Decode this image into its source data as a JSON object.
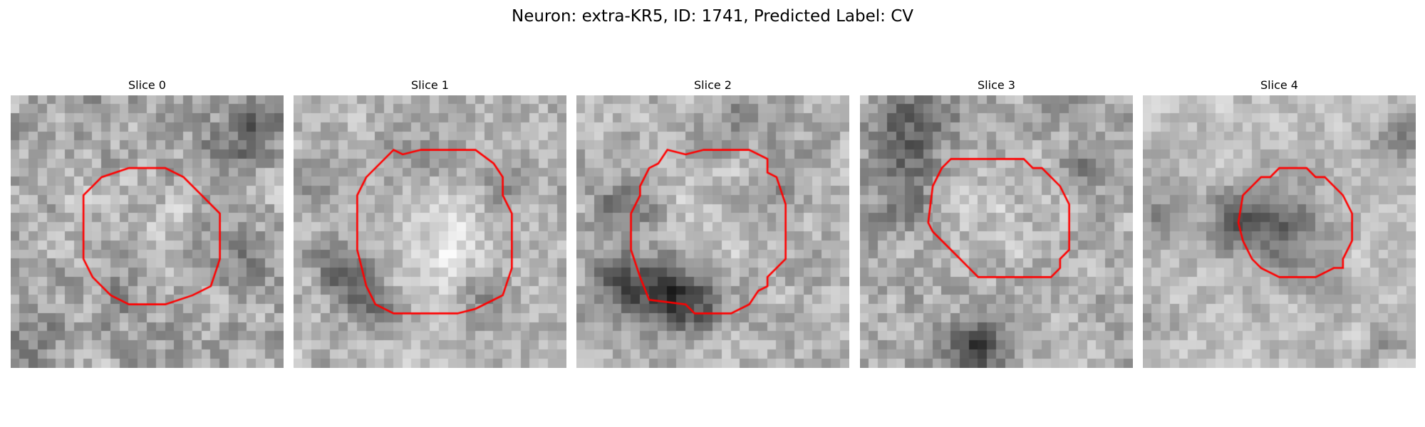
{
  "figure": {
    "title": "Neuron: extra-KR5, ID: 1741, Predicted Label: CV"
  },
  "grid_size": 30,
  "outline_color": "#ff0000",
  "panels": [
    {
      "title": "Slice 0",
      "seed": 11,
      "base": 170,
      "contrast": 42,
      "blobs": [
        {
          "cx": 27,
          "cy": 3,
          "r": 3,
          "d": -70
        },
        {
          "cx": 24,
          "cy": 7,
          "r": 2.5,
          "d": -45
        },
        {
          "cx": 24,
          "cy": 18,
          "r": 3,
          "d": -40
        },
        {
          "cx": 12,
          "cy": 22.5,
          "r": 2.5,
          "d": -45
        },
        {
          "cx": 8,
          "cy": 1,
          "r": 2,
          "d": -35
        },
        {
          "cx": 3,
          "cy": 27,
          "r": 3,
          "d": -35
        },
        {
          "cx": 15,
          "cy": 15,
          "r": 6,
          "d": 18
        }
      ],
      "outline": [
        [
          8,
          11
        ],
        [
          10,
          9
        ],
        [
          13,
          8
        ],
        [
          17,
          8
        ],
        [
          19,
          9
        ],
        [
          21,
          11
        ],
        [
          23,
          13
        ],
        [
          23,
          18
        ],
        [
          22,
          21
        ],
        [
          20,
          22
        ],
        [
          17,
          23
        ],
        [
          13,
          23
        ],
        [
          11,
          22
        ],
        [
          9,
          20
        ],
        [
          8,
          18
        ]
      ]
    },
    {
      "title": "Slice 1",
      "seed": 23,
      "base": 178,
      "contrast": 34,
      "blobs": [
        {
          "cx": 5,
          "cy": 18.5,
          "r": 2.5,
          "d": -60
        },
        {
          "cx": 7,
          "cy": 21.5,
          "r": 2.5,
          "d": -65
        },
        {
          "cx": 10,
          "cy": 23.5,
          "r": 2,
          "d": -50
        },
        {
          "cx": 21,
          "cy": 22,
          "r": 2.5,
          "d": -50
        },
        {
          "cx": 23,
          "cy": 10,
          "r": 2.5,
          "d": -40
        },
        {
          "cx": 14,
          "cy": 7,
          "r": 4,
          "d": -30
        },
        {
          "cx": 16,
          "cy": 15.5,
          "r": 6,
          "d": 40
        },
        {
          "cx": 3,
          "cy": 10,
          "r": 2.5,
          "d": -30
        }
      ],
      "outline": [
        [
          7,
          11
        ],
        [
          8,
          9
        ],
        [
          10,
          7
        ],
        [
          11,
          6
        ],
        [
          12,
          6.5
        ],
        [
          14,
          6
        ],
        [
          20,
          6
        ],
        [
          22,
          7.5
        ],
        [
          23,
          9
        ],
        [
          23,
          11
        ],
        [
          24,
          13
        ],
        [
          24,
          19
        ],
        [
          23,
          22
        ],
        [
          22,
          22.5
        ],
        [
          20,
          23.5
        ],
        [
          18,
          24
        ],
        [
          11,
          24
        ],
        [
          9,
          23
        ],
        [
          8,
          21
        ],
        [
          7,
          17
        ]
      ]
    },
    {
      "title": "Slice 2",
      "seed": 37,
      "base": 175,
      "contrast": 36,
      "blobs": [
        {
          "cx": 9,
          "cy": 21.5,
          "r": 4,
          "d": -95
        },
        {
          "cx": 13,
          "cy": 22.5,
          "r": 3,
          "d": -70
        },
        {
          "cx": 4,
          "cy": 20,
          "r": 2.5,
          "d": -60
        },
        {
          "cx": 5,
          "cy": 12,
          "r": 3,
          "d": -55
        },
        {
          "cx": 22,
          "cy": 10,
          "r": 2.5,
          "d": -40
        },
        {
          "cx": 19,
          "cy": 2.5,
          "r": 2.5,
          "d": -45
        },
        {
          "cx": 15,
          "cy": 14,
          "r": 5.5,
          "d": 28
        }
      ],
      "outline": [
        [
          6,
          13
        ],
        [
          7,
          11
        ],
        [
          7,
          10
        ],
        [
          8,
          8
        ],
        [
          9,
          7.5
        ],
        [
          10,
          6
        ],
        [
          12,
          6.5
        ],
        [
          14,
          6
        ],
        [
          19,
          6
        ],
        [
          21,
          7
        ],
        [
          21,
          8.5
        ],
        [
          22,
          9
        ],
        [
          23,
          12
        ],
        [
          23,
          18
        ],
        [
          21,
          20
        ],
        [
          21,
          21
        ],
        [
          20,
          21.5
        ],
        [
          19,
          23
        ],
        [
          17,
          24
        ],
        [
          13,
          24
        ],
        [
          12,
          23
        ],
        [
          8,
          22.5
        ],
        [
          7,
          20
        ],
        [
          6,
          17
        ]
      ]
    },
    {
      "title": "Slice 3",
      "seed": 53,
      "base": 172,
      "contrast": 38,
      "blobs": [
        {
          "cx": 5,
          "cy": 4,
          "r": 3.5,
          "d": -60
        },
        {
          "cx": 9,
          "cy": 3,
          "r": 2.5,
          "d": -45
        },
        {
          "cx": 5,
          "cy": 9,
          "r": 3,
          "d": -50
        },
        {
          "cx": 4,
          "cy": 13,
          "r": 2.5,
          "d": -40
        },
        {
          "cx": 13,
          "cy": 27.5,
          "r": 3,
          "d": -95
        },
        {
          "cx": 25,
          "cy": 8,
          "r": 2.5,
          "d": -35
        },
        {
          "cx": 15,
          "cy": 13.5,
          "r": 5,
          "d": 22
        }
      ],
      "outline": [
        [
          8,
          10
        ],
        [
          9,
          8
        ],
        [
          10,
          7
        ],
        [
          18,
          7
        ],
        [
          19,
          8
        ],
        [
          20,
          8
        ],
        [
          22,
          10
        ],
        [
          23,
          12
        ],
        [
          23,
          17
        ],
        [
          22,
          18
        ],
        [
          22,
          19
        ],
        [
          21,
          20
        ],
        [
          17,
          20
        ],
        [
          15,
          20
        ],
        [
          13,
          20
        ],
        [
          12,
          19
        ],
        [
          10,
          17
        ],
        [
          9,
          16
        ],
        [
          8,
          15
        ],
        [
          7.5,
          14
        ]
      ]
    },
    {
      "title": "Slice 4",
      "seed": 71,
      "base": 190,
      "contrast": 28,
      "blobs": [
        {
          "cx": 15,
          "cy": 14.5,
          "r": 4.5,
          "d": -85
        },
        {
          "cx": 9.5,
          "cy": 14,
          "r": 2.5,
          "d": -70
        },
        {
          "cx": 2,
          "cy": 13,
          "r": 2.5,
          "d": -50
        },
        {
          "cx": 28,
          "cy": 4.5,
          "r": 2.5,
          "d": -55
        },
        {
          "cx": 1.5,
          "cy": 25,
          "r": 2,
          "d": -40
        },
        {
          "cx": 27,
          "cy": 27,
          "r": 2,
          "d": -35
        },
        {
          "cx": 20,
          "cy": 22,
          "r": 2,
          "d": -30
        }
      ],
      "outline": [
        [
          11,
          11
        ],
        [
          12,
          10
        ],
        [
          13,
          9
        ],
        [
          14,
          9
        ],
        [
          15,
          8
        ],
        [
          18,
          8
        ],
        [
          19,
          9
        ],
        [
          20,
          9
        ],
        [
          21,
          10
        ],
        [
          22,
          11
        ],
        [
          23,
          13
        ],
        [
          23,
          16
        ],
        [
          22,
          18
        ],
        [
          22,
          19
        ],
        [
          21,
          19
        ],
        [
          19,
          20
        ],
        [
          15,
          20
        ],
        [
          13,
          19
        ],
        [
          12,
          18
        ],
        [
          11,
          16
        ],
        [
          10.5,
          14
        ]
      ]
    }
  ]
}
